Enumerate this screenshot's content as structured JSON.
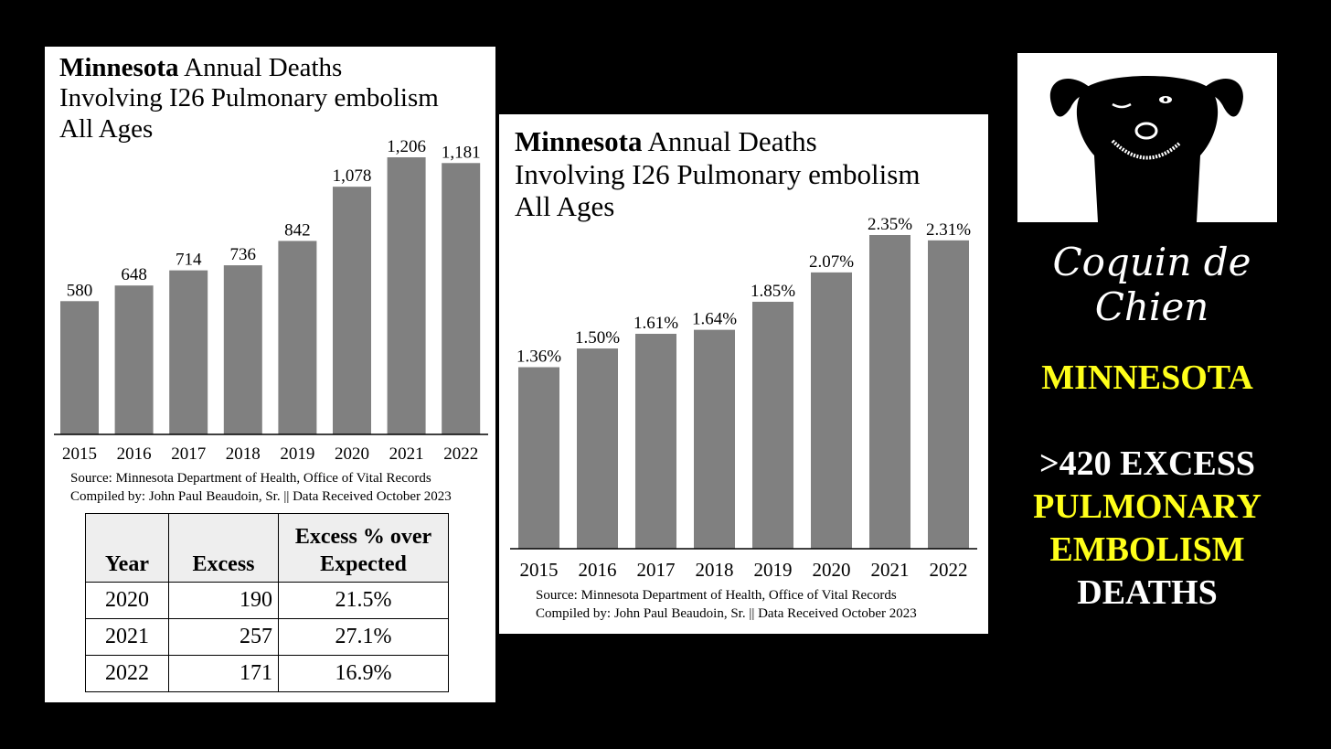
{
  "chart_data": [
    {
      "type": "bar",
      "title_bold": "Minnesota",
      "title_rest": " Annual Deaths",
      "title_lines": [
        "Involving I26 Pulmonary embolism",
        "All Ages"
      ],
      "categories": [
        "2015",
        "2016",
        "2017",
        "2018",
        "2019",
        "2020",
        "2021",
        "2022"
      ],
      "values": [
        580,
        648,
        714,
        736,
        842,
        1078,
        1206,
        1181
      ],
      "data_labels": [
        "580",
        "648",
        "714",
        "736",
        "842",
        "1,078",
        "1,206",
        "1,181"
      ],
      "bar_color": "#808080",
      "source_lines": [
        "Source:  Minnesota Department of Health, Office of Vital Records",
        "Compiled by:  John Paul Beaudoin, Sr. || Data Received October 2023"
      ]
    },
    {
      "type": "bar",
      "title_bold": "Minnesota",
      "title_rest": " Annual Deaths",
      "title_lines": [
        "Involving I26 Pulmonary embolism",
        "All Ages"
      ],
      "categories": [
        "2015",
        "2016",
        "2017",
        "2018",
        "2019",
        "2020",
        "2021",
        "2022"
      ],
      "values": [
        1.36,
        1.5,
        1.61,
        1.64,
        1.85,
        2.07,
        2.35,
        2.31
      ],
      "data_labels": [
        "1.36%",
        "1.50%",
        "1.61%",
        "1.64%",
        "1.85%",
        "2.07%",
        "2.35%",
        "2.31%"
      ],
      "bar_color": "#808080",
      "source_lines": [
        "Source:  Minnesota Department of Health, Office of Vital Records",
        "Compiled by:  John Paul Beaudoin, Sr. || Data Received October 2023"
      ]
    }
  ],
  "excess_table": {
    "headers": [
      "Year",
      "Excess",
      "Excess % over Expected"
    ],
    "rows": [
      [
        "2020",
        "190",
        "21.5%"
      ],
      [
        "2021",
        "257",
        "27.1%"
      ],
      [
        "2022",
        "171",
        "16.9%"
      ]
    ]
  },
  "brand": "Coquin de Chien",
  "side_text": {
    "line1": "MINNESOTA",
    "line2": ">420 EXCESS",
    "line3": "PULMONARY",
    "line4": "EMBOLISM",
    "line5": "DEATHS"
  },
  "colors": {
    "yellow": "#ffff1a",
    "background": "#000000"
  }
}
